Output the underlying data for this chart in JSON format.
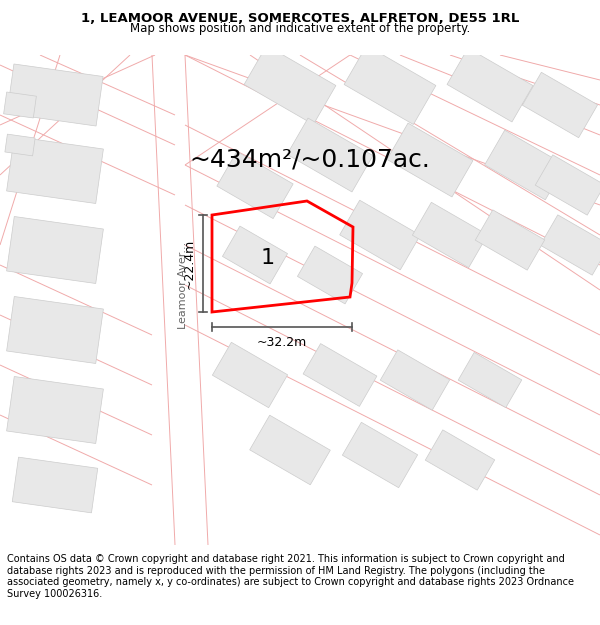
{
  "title_line1": "1, LEAMOOR AVENUE, SOMERCOTES, ALFRETON, DE55 1RL",
  "title_line2": "Map shows position and indicative extent of the property.",
  "area_label": "~434m²/~0.107ac.",
  "label_number": "1",
  "dim_vertical": "~22.4m",
  "dim_horizontal": "~32.2m",
  "street_label": "Leamoor Aver...",
  "copyright_text": "Contains OS data © Crown copyright and database right 2021. This information is subject to Crown copyright and database rights 2023 and is reproduced with the permission of HM Land Registry. The polygons (including the associated geometry, namely x, y co-ordinates) are subject to Crown copyright and database rights 2023 Ordnance Survey 100026316.",
  "map_bg": "#ffffff",
  "property_color": "#ff0000",
  "road_line_color": "#f0aaaa",
  "building_fill": "#e8e8e8",
  "building_edge": "#cccccc",
  "dim_line_color": "#555555",
  "title_fontsize": 9.5,
  "subtitle_fontsize": 8.5,
  "area_fontsize": 18,
  "label_fontsize": 16,
  "dim_fontsize": 9,
  "street_label_fontsize": 8,
  "copyright_fontsize": 7,
  "road_lw": 0.7,
  "property_lw": 2.0,
  "building_lw": 0.5
}
